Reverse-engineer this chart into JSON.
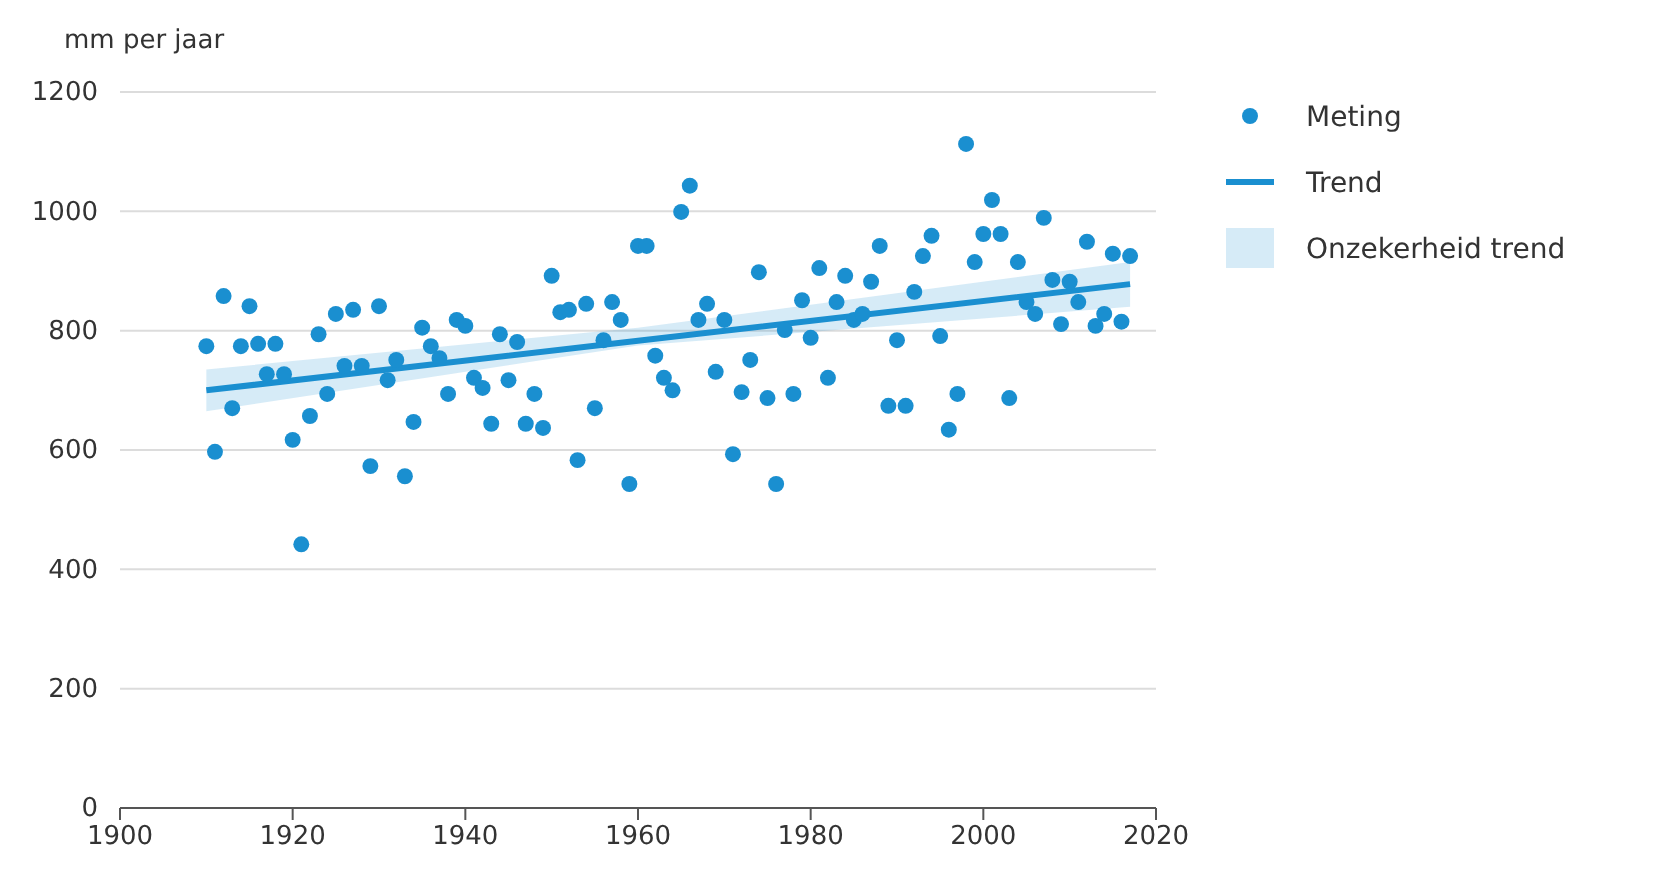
{
  "chart_data": {
    "type": "scatter",
    "ylabel": "mm per jaar",
    "xlim": [
      1900,
      2020
    ],
    "xticks": [
      1900,
      1920,
      1940,
      1960,
      1980,
      2000,
      2020
    ],
    "ylim": [
      0,
      1200
    ],
    "yticks": [
      0,
      200,
      400,
      600,
      800,
      1000,
      1200
    ],
    "grid": "y",
    "legend": "top right",
    "annotations": [
      "Onzekerheid trend"
    ],
    "series": [
      {
        "name": "Trend",
        "type": "line",
        "color": "#1a8fd0",
        "x": [
          1910,
          1960,
          2017
        ],
        "values": [
          700,
          783,
          878
        ],
        "lower": [
          665,
          775,
          840
        ],
        "upper": [
          735,
          805,
          915
        ]
      },
      {
        "name": "Meting",
        "marker": "circle",
        "color": "#1a8fd0",
        "x": [
          1910,
          1911,
          1912,
          1913,
          1914,
          1915,
          1916,
          1917,
          1918,
          1919,
          1920,
          1921,
          1922,
          1923,
          1924,
          1925,
          1926,
          1927,
          1928,
          1929,
          1930,
          1931,
          1932,
          1933,
          1934,
          1935,
          1936,
          1937,
          1938,
          1939,
          1940,
          1941,
          1942,
          1943,
          1944,
          1945,
          1946,
          1947,
          1948,
          1949,
          1950,
          1951,
          1952,
          1953,
          1954,
          1955,
          1956,
          1957,
          1958,
          1959,
          1960,
          1961,
          1962,
          1963,
          1964,
          1965,
          1966,
          1967,
          1968,
          1969,
          1970,
          1971,
          1972,
          1973,
          1974,
          1975,
          1976,
          1977,
          1978,
          1979,
          1980,
          1981,
          1982,
          1983,
          1984,
          1985,
          1986,
          1987,
          1988,
          1989,
          1990,
          1991,
          1992,
          1993,
          1994,
          1995,
          1996,
          1997,
          1998,
          1999,
          2000,
          2001,
          2002,
          2003,
          2004,
          2005,
          2006,
          2007,
          2008,
          2009,
          2010,
          2011,
          2012,
          2013,
          2014,
          2015,
          2016,
          2017
        ],
        "values": [
          774,
          597,
          858,
          670,
          774,
          841,
          778,
          727,
          778,
          727,
          617,
          442,
          657,
          794,
          694,
          828,
          741,
          835,
          741,
          573,
          841,
          717,
          751,
          556,
          647,
          805,
          774,
          754,
          694,
          818,
          808,
          721,
          704,
          644,
          794,
          717,
          781,
          644,
          694,
          637,
          892,
          831,
          835,
          583,
          845,
          670,
          784,
          848,
          818,
          543,
          942,
          942,
          758,
          721,
          700,
          999,
          1043,
          818,
          845,
          731,
          818,
          593,
          697,
          751,
          898,
          687,
          543,
          801,
          694,
          851,
          788,
          905,
          721,
          848,
          892,
          818,
          828,
          882,
          942,
          674,
          784,
          674,
          865,
          925,
          959,
          791,
          634,
          694,
          1113,
          915,
          962,
          1019,
          962,
          687,
          915,
          848,
          828,
          989,
          885,
          811,
          882,
          848,
          949,
          808,
          828,
          929,
          815,
          925
        ]
      }
    ]
  }
}
